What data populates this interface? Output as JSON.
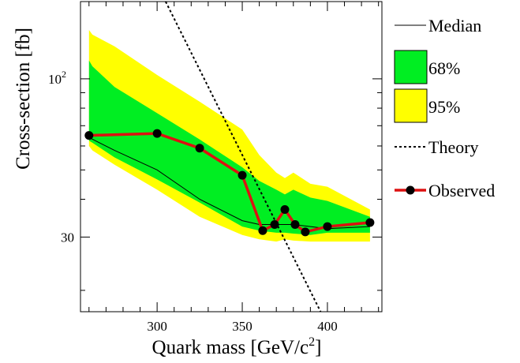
{
  "chart_data": {
    "type": "line",
    "xlabel": "Quark mass [GeV/c",
    "xlabel_sup": "2",
    "xlabel_end": "]",
    "ylabel": "Cross-section [fb]",
    "xlim": [
      255,
      432
    ],
    "ylim": [
      17,
      180
    ],
    "yscale": "log",
    "x_ticks": [
      300,
      350,
      400
    ],
    "x_tick_labels": [
      "300",
      "350",
      "400"
    ],
    "y_ticks": [
      30,
      100
    ],
    "y_tick_labels": [
      {
        "base": "30",
        "sup": ""
      },
      {
        "base": "10",
        "sup": "2"
      }
    ],
    "legend_position": "right",
    "legend": [
      {
        "label": "Median",
        "kind": "line"
      },
      {
        "label": "68%",
        "kind": "box",
        "color": "#00ee22"
      },
      {
        "label": "95%",
        "kind": "box",
        "color": "#ffff00"
      },
      {
        "label": "Theory",
        "kind": "dashed"
      },
      {
        "label": "Observed",
        "kind": "observed"
      }
    ],
    "colors": {
      "band68": "#00ee22",
      "band95": "#ffff00",
      "observed_line": "#dd1111",
      "observed_marker": "#000000"
    },
    "band95": {
      "x": [
        260,
        262,
        275,
        300,
        325,
        350,
        360,
        370,
        375,
        380,
        390,
        400,
        425
      ],
      "upper": [
        145,
        140,
        128,
        103,
        84,
        68,
        56,
        49,
        47,
        49,
        45,
        44,
        37
      ],
      "lower": [
        60,
        58,
        52,
        43,
        35,
        30.5,
        29.5,
        29,
        29.5,
        29.2,
        29,
        29,
        29
      ]
    },
    "band68": {
      "x": [
        260,
        262,
        275,
        300,
        325,
        350,
        360,
        370,
        375,
        380,
        390,
        400,
        425
      ],
      "upper": [
        115,
        110,
        94,
        77,
        63,
        51,
        46,
        43,
        41.5,
        43,
        40.5,
        39.5,
        35
      ],
      "lower": [
        62.5,
        61.5,
        55,
        46.5,
        39,
        32.5,
        31.5,
        31,
        31,
        30.8,
        30.5,
        31,
        31
      ]
    },
    "median": {
      "x": [
        260,
        275,
        300,
        325,
        350,
        360,
        370,
        380,
        390,
        400,
        425
      ],
      "y": [
        64,
        58,
        50,
        40,
        34,
        33,
        33,
        33,
        32.5,
        32,
        32.5
      ]
    },
    "theory": {
      "x": [
        305,
        396
      ],
      "y": [
        180,
        17
      ]
    },
    "observed": {
      "x": [
        260,
        300,
        325,
        350,
        362,
        369,
        375,
        381,
        387,
        400,
        425
      ],
      "y": [
        65,
        66,
        59,
        48,
        31.5,
        33,
        37,
        33,
        31.2,
        32.5,
        33.5
      ]
    }
  }
}
